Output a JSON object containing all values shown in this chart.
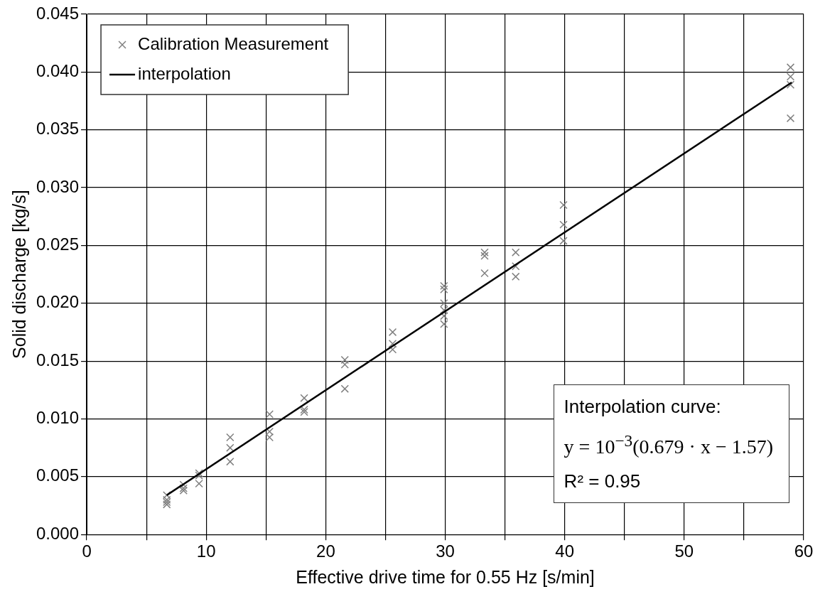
{
  "chart_data": {
    "type": "scatter",
    "xlabel": "Effective drive time for 0.55 Hz [s/min]",
    "ylabel": "Solid discharge [kg/s]",
    "xlim": [
      0,
      60
    ],
    "xticks": [
      0,
      {
        "value": 5,
        "label": null
      },
      10,
      {
        "value": 15,
        "label": null
      },
      20,
      {
        "value": 25,
        "label": null
      },
      30,
      {
        "value": 35,
        "label": null
      },
      40,
      {
        "value": 45,
        "label": null
      },
      50,
      {
        "value": 55,
        "label": null
      },
      60
    ],
    "ylim": [
      0,
      0.045
    ],
    "yticks": [
      {
        "value": 0,
        "label": "0.000"
      },
      {
        "value": 0.005,
        "label": "0.005"
      },
      {
        "value": 0.01,
        "label": "0.010"
      },
      {
        "value": 0.015,
        "label": "0.015"
      },
      {
        "value": 0.02,
        "label": "0.020"
      },
      {
        "value": 0.025,
        "label": "0.025"
      },
      {
        "value": 0.03,
        "label": "0.030"
      },
      {
        "value": 0.035,
        "label": "0.035"
      },
      {
        "value": 0.04,
        "label": "0.040"
      },
      {
        "value": 0.045,
        "label": "0.045"
      }
    ],
    "grid": true,
    "legend": "top left",
    "marker": "cross",
    "series": [
      {
        "name": "Calibration Measurement",
        "color": "#808080",
        "x": [
          6.7,
          6.7,
          6.7,
          6.7,
          8.1,
          8.1,
          8.1,
          9.4,
          9.4,
          9.4,
          12,
          12,
          12,
          15.3,
          15.3,
          15.3,
          18.2,
          18.2,
          18.2,
          21.6,
          21.6,
          21.6,
          25.6,
          25.6,
          25.6,
          29.9,
          29.9,
          29.9,
          29.9,
          29.9,
          29.9,
          33.3,
          33.3,
          33.3,
          35.9,
          35.9,
          35.9,
          39.9,
          39.9,
          39.9,
          58.9,
          58.9,
          58.9,
          58.9
        ],
        "values": [
          0.0034,
          0.003,
          0.0028,
          0.0026,
          0.0043,
          0.004,
          0.0038,
          0.0053,
          0.0051,
          0.0044,
          0.0084,
          0.0075,
          0.0063,
          0.0104,
          0.0089,
          0.0084,
          0.0118,
          0.0108,
          0.0106,
          0.0151,
          0.0147,
          0.0126,
          0.0175,
          0.0165,
          0.016,
          0.0215,
          0.0212,
          0.02,
          0.0194,
          0.0189,
          0.0182,
          0.0244,
          0.0241,
          0.0226,
          0.0244,
          0.0232,
          0.0223,
          0.0285,
          0.0268,
          0.0254,
          0.0404,
          0.0396,
          0.0389,
          0.036
        ]
      },
      {
        "name": "interpolation",
        "type": "line",
        "color": "#000000",
        "marker": "none",
        "x": [
          6.7,
          59
        ],
        "values": [
          0.0034,
          0.0391
        ]
      }
    ],
    "annotations": [
      "Interpolation curve:",
      "y = 10$^{−3}$(0.679 · x − 1.57)",
      "R² = 0.95"
    ]
  }
}
